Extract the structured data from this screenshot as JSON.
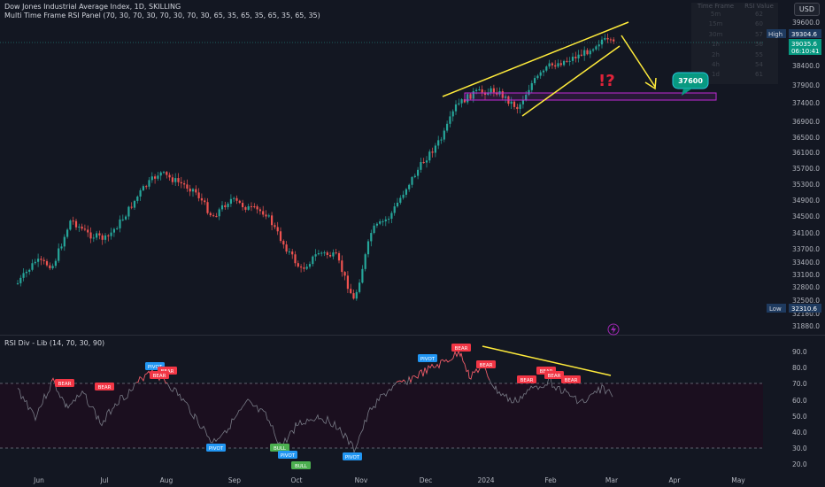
{
  "header": {
    "title": "Dow Jones Industrial Average Index, 1D, SKILLING",
    "indicator": "Multi Time Frame RSI Panel (70, 30, 70, 30, 70, 30, 70, 30, 65, 35, 65, 35, 65, 35, 65, 35)"
  },
  "currency_button": "USD",
  "rsi_table": {
    "headers": [
      "Time Frame",
      "RSI Value"
    ],
    "rows": [
      {
        "tf": "5m",
        "val": "62"
      },
      {
        "tf": "15m",
        "val": "60"
      },
      {
        "tf": "30m",
        "val": "57"
      },
      {
        "tf": "1h",
        "val": "56"
      },
      {
        "tf": "2h",
        "val": "55"
      },
      {
        "tf": "4h",
        "val": "54"
      },
      {
        "tf": "1d",
        "val": "61"
      }
    ]
  },
  "price_axis": {
    "ticks": [
      "39600.0",
      "38400.0",
      "37900.0",
      "37400.0",
      "36900.0",
      "36500.0",
      "36100.0",
      "35700.0",
      "35300.0",
      "34900.0",
      "34500.0",
      "34100.0",
      "33700.0",
      "33400.0",
      "33100.0",
      "32800.0",
      "32500.0",
      "32180.0",
      "31880.0"
    ],
    "high_label": "High",
    "high_value": "39304.6",
    "current_value": "39035.6",
    "countdown": "06:10:41",
    "low_label": "Low",
    "low_value": "32310.6"
  },
  "annotations": {
    "target_label": "37600",
    "warning_text": "!?"
  },
  "rsi_pane": {
    "title": "RSI Div - Lib (14, 70, 30, 90)",
    "ticks": [
      "90.0",
      "80.0",
      "70.0",
      "60.0",
      "50.0",
      "40.0",
      "30.0",
      "20.0"
    ],
    "labels": [
      {
        "text": "BEAR",
        "kind": "bear"
      },
      {
        "text": "BEAR",
        "kind": "bear"
      },
      {
        "text": "PIVOT",
        "kind": "pivot"
      },
      {
        "text": "BEAR",
        "kind": "bear"
      },
      {
        "text": "BEAR",
        "kind": "bear"
      },
      {
        "text": "PIVOT",
        "kind": "pivot"
      },
      {
        "text": "BULL",
        "kind": "bull"
      },
      {
        "text": "PIVOT",
        "kind": "pivot"
      },
      {
        "text": "BULL",
        "kind": "bull"
      },
      {
        "text": "PIVOT",
        "kind": "pivot"
      },
      {
        "text": "PIVOT",
        "kind": "pivot"
      },
      {
        "text": "BEAR",
        "kind": "bear"
      },
      {
        "text": "BEAR",
        "kind": "bear"
      },
      {
        "text": "BEAR",
        "kind": "bear"
      },
      {
        "text": "BEAR",
        "kind": "bear"
      },
      {
        "text": "BEAR",
        "kind": "bear"
      },
      {
        "text": "BEAR",
        "kind": "bear"
      }
    ]
  },
  "time_axis": [
    "Jun",
    "Jul",
    "Aug",
    "Sep",
    "Oct",
    "Nov",
    "Dec",
    "2024",
    "Feb",
    "Mar",
    "Apr",
    "May"
  ],
  "colors": {
    "background": "#131722",
    "up_candle": "#26a69a",
    "down_candle": "#ef5350",
    "trendline": "#ffeb3b",
    "zone_border": "#9c27b0",
    "label_teal": "#089981",
    "pivot_blue": "#2196f3",
    "bear_red": "#f23645",
    "bull_green": "#4caf50"
  },
  "icons": [
    "flash-icon"
  ]
}
